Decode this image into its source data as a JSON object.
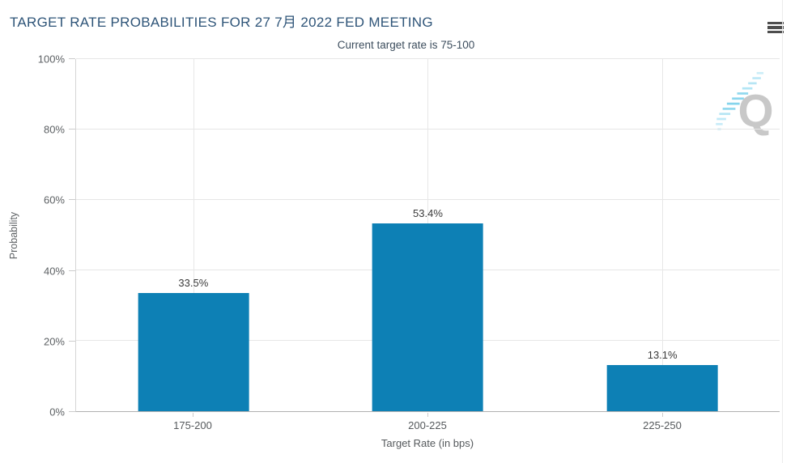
{
  "chart_data": {
    "type": "bar",
    "title": "TARGET RATE PROBABILITIES FOR 27 7月 2022 FED MEETING",
    "subtitle": "Current target rate is 75-100",
    "categories": [
      "175-200",
      "200-225",
      "225-250"
    ],
    "values": [
      33.5,
      53.4,
      13.1
    ],
    "data_labels": [
      "33.5%",
      "53.4%",
      "13.1%"
    ],
    "xlabel": "Target Rate (in bps)",
    "ylabel": "Probability",
    "ylim": [
      0,
      100
    ],
    "ytick_step": 20,
    "ytick_suffix": "%",
    "ytick_labels": [
      "0%",
      "20%",
      "40%",
      "60%",
      "80%",
      "100%"
    ],
    "grid": true,
    "legend_position": "none",
    "bar_color": "#0d80b5"
  },
  "icons": {
    "menu": "hamburger-icon",
    "watermark": "quandl-q-watermark"
  },
  "watermark": {
    "letter": "Q"
  },
  "colors": {
    "title": "#2e5478",
    "subtitle": "#3d4e5e",
    "bar": "#0d80b5",
    "gridline": "#e6e6e6",
    "x_axis_line": "#b0b0b0",
    "y_axis_line": "#d6d6d6",
    "axis_text": "#55595c",
    "data_label_text": "#3a3a3a",
    "menu_icon": "#4d4d4d",
    "watermark_q": "#c6c6c6",
    "watermark_dash": "#7fd2ec"
  }
}
